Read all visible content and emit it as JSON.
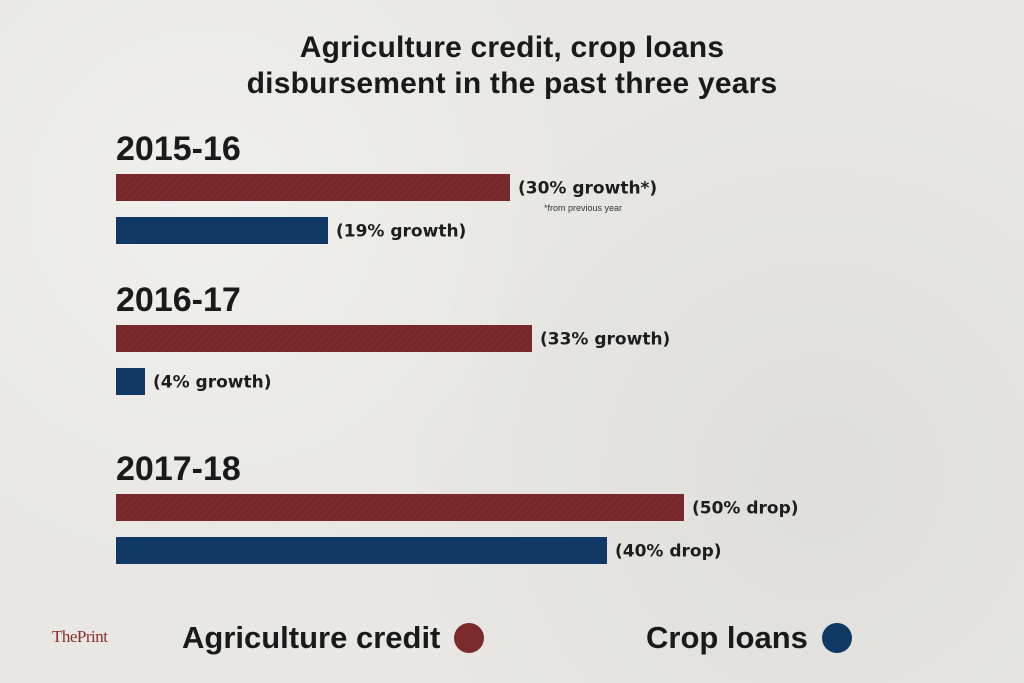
{
  "brand": {
    "logo_text": "ThePrint"
  },
  "colors": {
    "agri": "#7b2a2c",
    "crop": "#0f3864"
  },
  "chart_data": {
    "type": "bar",
    "orientation": "horizontal",
    "title_line1": "Agriculture credit, crop loans",
    "title_line2": "disbursement in the past three years",
    "categories": [
      "2015-16",
      "2016-17",
      "2017-18"
    ],
    "series": [
      {
        "name": "Agriculture credit",
        "color": "#7b2a2c",
        "values": [
          394,
          416,
          568
        ],
        "labels": [
          "(30% growth*)",
          "(33% growth)",
          "(50% drop)"
        ]
      },
      {
        "name": "Crop loans",
        "color": "#0f3864",
        "values": [
          212,
          29,
          491
        ],
        "labels": [
          "(19% growth)",
          "(4% growth)",
          "(40% drop)"
        ]
      }
    ],
    "footnote": "*from previous year",
    "xlim": [
      0,
      600
    ],
    "grid": false,
    "legend_position": "bottom"
  }
}
